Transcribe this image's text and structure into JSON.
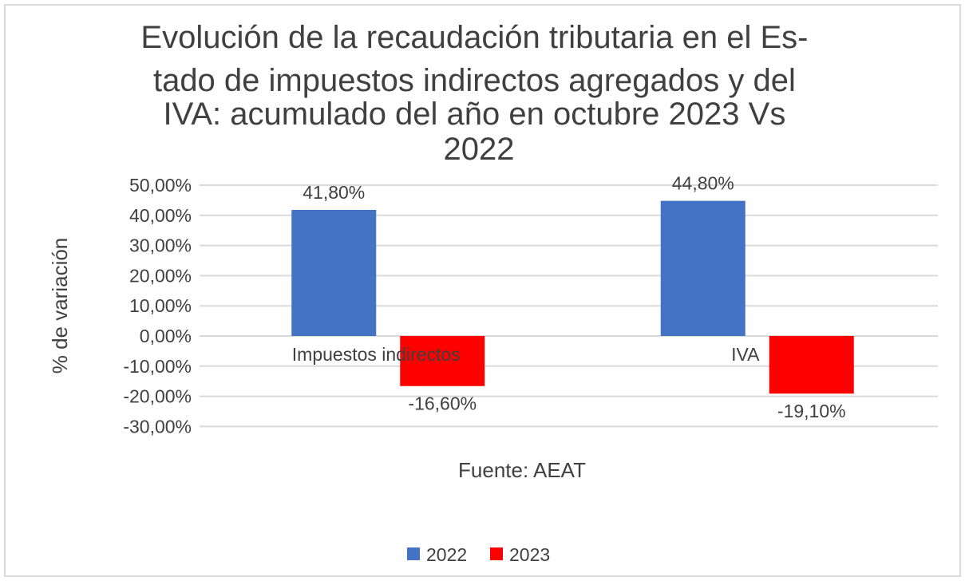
{
  "chart_data": {
    "type": "bar",
    "title_lines": [
      "Evolución de la recaudación tributaria en el Es-",
      "tado de impuestos indirectos agregados y del",
      "IVA: acumulado del año en octubre 2023 Vs",
      "2022"
    ],
    "xlabel": "Fuente: AEAT",
    "ylabel": "% de variación",
    "categories": [
      "Impuestos indirectos",
      "IVA"
    ],
    "series": [
      {
        "name": "2022",
        "values": [
          41.8,
          44.8
        ],
        "labels": [
          "41,80%",
          "44,80%"
        ],
        "color": "#4472C4"
      },
      {
        "name": "2023",
        "values": [
          -16.6,
          -19.1
        ],
        "labels": [
          "-16,60%",
          "-19,10%"
        ],
        "color": "#FF0000"
      }
    ],
    "ylim": [
      -30,
      50
    ],
    "yticks": [
      50,
      40,
      30,
      20,
      10,
      0,
      -10,
      -20,
      -30
    ],
    "ytick_labels": [
      "50,00%",
      "40,00%",
      "30,00%",
      "20,00%",
      "10,00%",
      "0,00%",
      "-10,00%",
      "-20,00%",
      "-30,00%"
    ],
    "grid": true,
    "legend": "bottom",
    "border_color": "#D9D9D9",
    "grid_color": "#D9D9D9"
  }
}
